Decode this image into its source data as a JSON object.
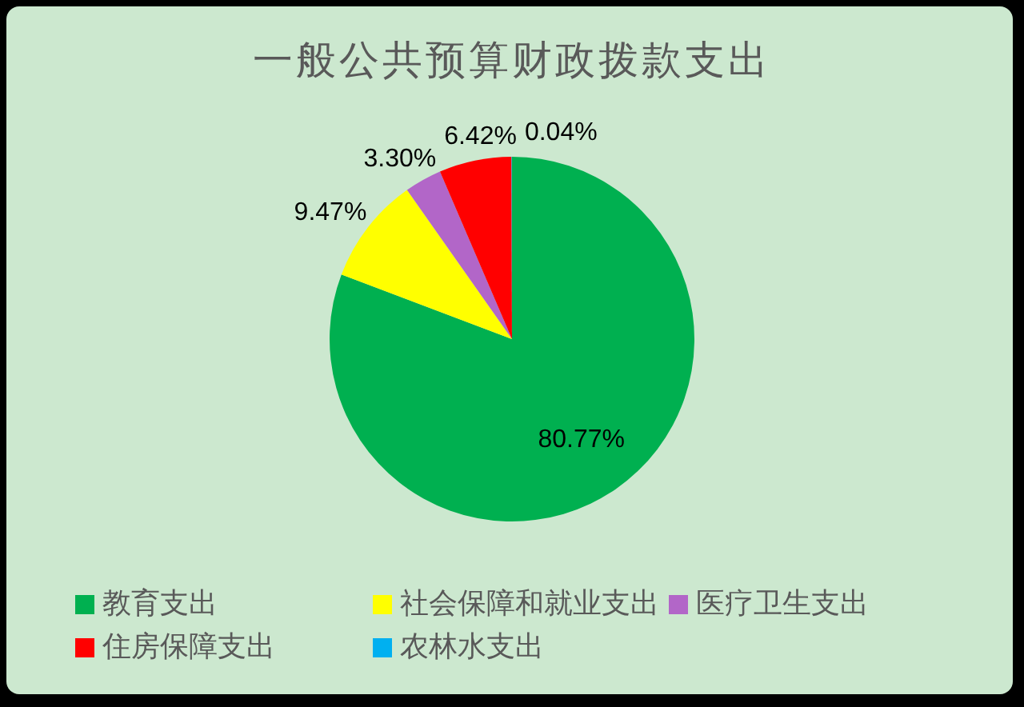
{
  "chart_data": {
    "type": "pie",
    "title": "一般公共预算财政拨款支出",
    "categories": [
      "教育支出",
      "社会保障和就业支出",
      "医疗卫生支出",
      "住房保障支出",
      "农林水支出"
    ],
    "values": [
      80.77,
      9.47,
      3.3,
      6.42,
      0.04
    ],
    "colors": [
      "#00b050",
      "#ffff00",
      "#b266c8",
      "#ff0000",
      "#00b0f0"
    ],
    "value_labels": [
      "80.77%",
      "9.47%",
      "3.30%",
      "6.42%",
      "0.04%"
    ],
    "legend": "bottom"
  }
}
